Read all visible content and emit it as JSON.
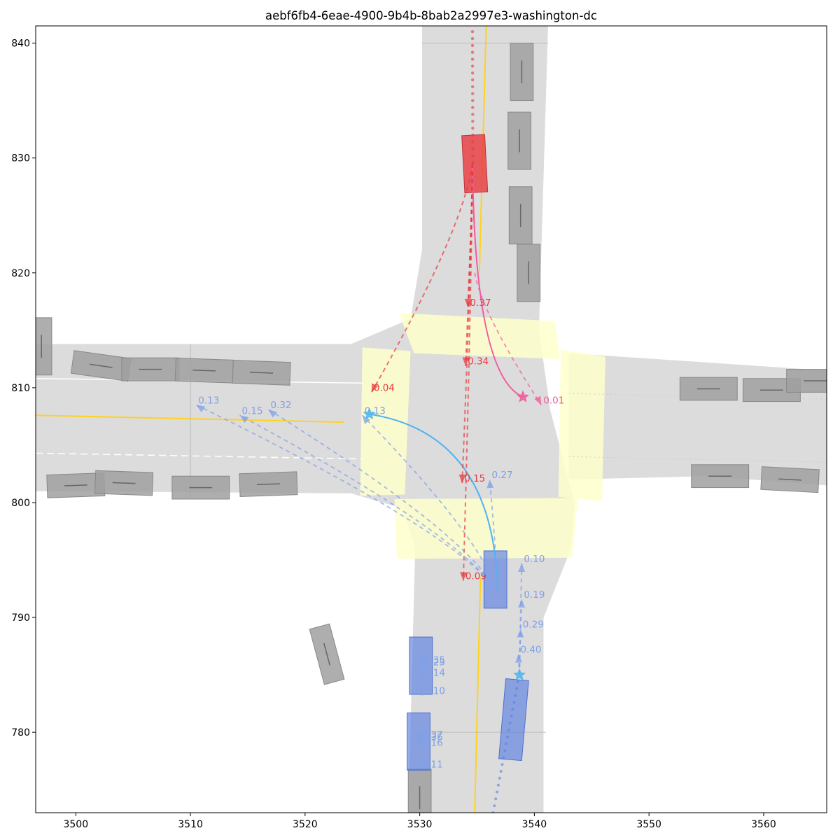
{
  "chart_data": {
    "type": "scatter",
    "title": "aebf6fb4-6eae-4900-9b4b-8bab2a2997e3-washington-dc",
    "xlabel": "",
    "ylabel": "",
    "xlim": [
      3496.5,
      3565.5
    ],
    "ylim": [
      773,
      841.5
    ],
    "x_ticks": [
      3500,
      3510,
      3520,
      3530,
      3540,
      3550,
      3560
    ],
    "y_ticks": [
      780,
      790,
      800,
      810,
      820,
      830,
      840
    ],
    "grid": false,
    "colors": {
      "road": "#dcdcdc",
      "crosswalk": "#ffffcc",
      "lane_center_yellow": "#ffd21e",
      "parked_vehicle": "#a0a0a0",
      "focal_agent": "#e8393e",
      "focal_agent_pred": "#e8393e",
      "pedestrian_pred": "#f25a9e",
      "other_agent": "#5a7fe0",
      "other_agent_pred": "#7fa0e8",
      "light_blue_pred": "#4fb4f0"
    },
    "roads": {
      "ns_road": {
        "x_range": [
          3530,
          3541
        ],
        "y_range": [
          773,
          841.5
        ]
      },
      "ew_road": {
        "x_range": [
          3496.5,
          3565.5
        ],
        "y_range": [
          800.5,
          813.5
        ]
      }
    },
    "parked_vehicles": [
      {
        "x": 3538.9,
        "y": 837.5,
        "len": 5,
        "wid": 2,
        "heading": 90
      },
      {
        "x": 3538.7,
        "y": 831.5,
        "len": 5,
        "wid": 2,
        "heading": 90
      },
      {
        "x": 3538.8,
        "y": 825.0,
        "len": 5,
        "wid": 2,
        "heading": 90
      },
      {
        "x": 3539.5,
        "y": 820.0,
        "len": 5,
        "wid": 2,
        "heading": 90
      },
      {
        "x": 3497.0,
        "y": 813.6,
        "len": 5,
        "wid": 1.8,
        "heading": -90
      },
      {
        "x": 3502.2,
        "y": 811.9,
        "len": 5,
        "wid": 2,
        "heading": -8
      },
      {
        "x": 3506.5,
        "y": 811.6,
        "len": 5,
        "wid": 2,
        "heading": 180
      },
      {
        "x": 3511.2,
        "y": 811.5,
        "len": 5,
        "wid": 2,
        "heading": 178
      },
      {
        "x": 3516.2,
        "y": 811.3,
        "len": 5,
        "wid": 2,
        "heading": 178
      },
      {
        "x": 3555.2,
        "y": 809.9,
        "len": 5,
        "wid": 2,
        "heading": 180
      },
      {
        "x": 3560.7,
        "y": 809.8,
        "len": 5,
        "wid": 2,
        "heading": 180
      },
      {
        "x": 3564.5,
        "y": 810.6,
        "len": 5,
        "wid": 2,
        "heading": 180
      },
      {
        "x": 3500.0,
        "y": 801.5,
        "len": 5,
        "wid": 2,
        "heading": 2
      },
      {
        "x": 3504.2,
        "y": 801.7,
        "len": 5,
        "wid": 2,
        "heading": -2
      },
      {
        "x": 3510.9,
        "y": 801.3,
        "len": 5,
        "wid": 2,
        "heading": 0
      },
      {
        "x": 3516.8,
        "y": 801.6,
        "len": 5,
        "wid": 2,
        "heading": 2
      },
      {
        "x": 3556.2,
        "y": 802.3,
        "len": 5,
        "wid": 2,
        "heading": 0
      },
      {
        "x": 3562.3,
        "y": 802.0,
        "len": 5,
        "wid": 2,
        "heading": -3
      },
      {
        "x": 3521.9,
        "y": 786.8,
        "len": 5,
        "wid": 1.8,
        "heading": 105
      },
      {
        "x": 3530.0,
        "y": 774.3,
        "len": 5,
        "wid": 2,
        "heading": 90
      }
    ],
    "focal_agent": {
      "x": 3534.8,
      "y": 829.5,
      "len": 5,
      "wid": 2,
      "heading": -87
    },
    "other_agents": [
      {
        "x": 3536.6,
        "y": 793.3,
        "len": 5,
        "wid": 2,
        "heading": 90
      },
      {
        "x": 3530.1,
        "y": 785.8,
        "len": 5,
        "wid": 2,
        "heading": 90
      },
      {
        "x": 3529.9,
        "y": 779.2,
        "len": 5,
        "wid": 2,
        "heading": 90
      },
      {
        "x": 3538.2,
        "y": 781.1,
        "len": 7,
        "wid": 2,
        "heading": 85
      }
    ],
    "agent_current_positions": [
      {
        "type": "pedestrian",
        "x": 3539.0,
        "y": 809.2
      },
      {
        "type": "cyclist",
        "x": 3525.6,
        "y": 807.7
      },
      {
        "type": "cyclist",
        "x": 3538.7,
        "y": 785.0
      }
    ],
    "predictions": [
      {
        "agent": "focal",
        "endpoint": [
          3534.2,
          817.0
        ],
        "prob": "0.37"
      },
      {
        "agent": "focal",
        "endpoint": [
          3534.0,
          811.9
        ],
        "prob": "0.34"
      },
      {
        "agent": "focal",
        "endpoint": [
          3525.8,
          809.6
        ],
        "prob": "0.04"
      },
      {
        "agent": "focal",
        "endpoint": [
          3533.7,
          801.7
        ],
        "prob": "0.15"
      },
      {
        "agent": "focal",
        "endpoint": [
          3533.8,
          793.2
        ],
        "prob": "0.09"
      },
      {
        "agent": "pedestrian",
        "endpoint": [
          3540.6,
          808.5
        ],
        "prob": "0.01"
      },
      {
        "agent": "cyclist_w",
        "endpoint": [
          3510.5,
          808.5
        ],
        "prob": "0.13"
      },
      {
        "agent": "cyclist_w",
        "endpoint": [
          3516.8,
          808.1
        ],
        "prob": "0.32"
      },
      {
        "agent": "cyclist_w",
        "endpoint": [
          3514.3,
          807.6
        ],
        "prob": "0.15"
      },
      {
        "agent": "cyclist_w",
        "endpoint": [
          3525.0,
          807.6
        ],
        "prob": "0.13"
      },
      {
        "agent": "cyclist_w",
        "endpoint": [
          3536.1,
          802.0
        ],
        "prob": "0.27"
      },
      {
        "agent": "cyclist_s",
        "endpoint": [
          3538.9,
          794.7
        ],
        "prob": "0.10"
      },
      {
        "agent": "cyclist_s",
        "endpoint": [
          3538.9,
          791.6
        ],
        "prob": "0.19"
      },
      {
        "agent": "cyclist_s",
        "endpoint": [
          3538.8,
          789.0
        ],
        "prob": "0.29"
      },
      {
        "agent": "cyclist_s",
        "endpoint": [
          3538.6,
          786.8
        ],
        "prob": "0.40"
      },
      {
        "agent": "veh_785",
        "endpoint": [
          3530.2,
          785.9
        ],
        "prob": "0.35"
      },
      {
        "agent": "veh_785",
        "endpoint": [
          3530.2,
          785.7
        ],
        "prob": "0.25"
      },
      {
        "agent": "veh_785",
        "endpoint": [
          3530.2,
          784.8
        ],
        "prob": "0.14"
      },
      {
        "agent": "veh_785",
        "endpoint": [
          3530.2,
          783.2
        ],
        "prob": "0.10"
      },
      {
        "agent": "veh_779",
        "endpoint": [
          3530.0,
          779.4
        ],
        "prob": "0.37"
      },
      {
        "agent": "veh_779",
        "endpoint": [
          3530.0,
          779.2
        ],
        "prob": "0.36"
      },
      {
        "agent": "veh_779",
        "endpoint": [
          3530.0,
          778.7
        ],
        "prob": "0.16"
      },
      {
        "agent": "veh_779",
        "endpoint": [
          3530.0,
          776.8
        ],
        "prob": "0.11"
      }
    ]
  }
}
